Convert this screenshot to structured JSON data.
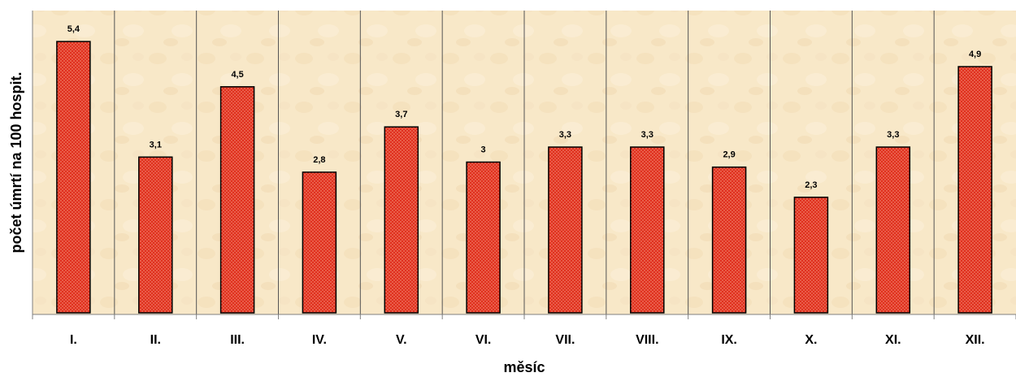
{
  "chart_data": {
    "type": "bar",
    "title": "",
    "xlabel": "měsíc",
    "ylabel": "počet úmrtí na 100 hospit.",
    "categories": [
      "I.",
      "II.",
      "III.",
      "IV.",
      "V.",
      "VI.",
      "VII.",
      "VIII.",
      "IX.",
      "X.",
      "XI.",
      "XII."
    ],
    "values": [
      5.4,
      3.1,
      4.5,
      2.8,
      3.7,
      3.0,
      3.3,
      3.3,
      2.9,
      2.3,
      3.3,
      4.9
    ],
    "data_labels": [
      "5,4",
      "3,1",
      "4,5",
      "2,8",
      "3,7",
      "3",
      "3,3",
      "3,3",
      "2,9",
      "2,3",
      "3,3",
      "4,9"
    ],
    "ylim": [
      0,
      6
    ],
    "grid": "vertical separators between categories",
    "legend": "none",
    "colors": {
      "bar_fill": "#e0301e",
      "bar_dots": "#f6a08a",
      "bar_outline": "#000000",
      "plot_background": "#f8e8c8",
      "separator": "#555555"
    }
  }
}
